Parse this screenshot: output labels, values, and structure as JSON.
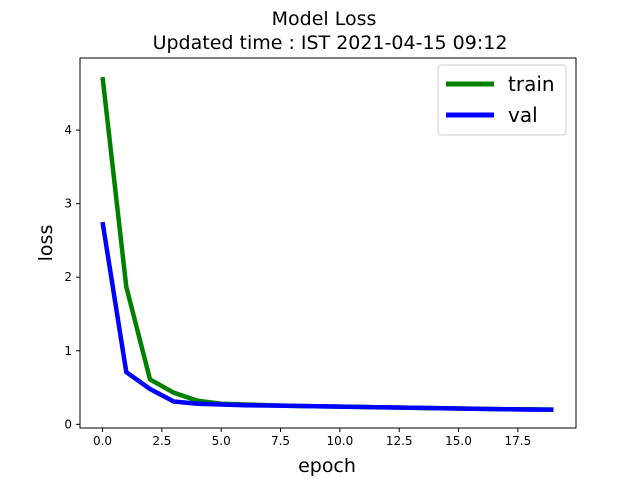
{
  "chart_data": {
    "type": "line",
    "title": "Model Loss",
    "subtitle": "Updated time : IST 2021-04-15 09:12",
    "xlabel": "epoch",
    "ylabel": "loss",
    "xlim": [
      -0.95,
      19.95
    ],
    "ylim": [
      -0.05,
      4.98
    ],
    "xticks": [
      0.0,
      2.5,
      5.0,
      7.5,
      10.0,
      12.5,
      15.0,
      17.5
    ],
    "xtick_labels": [
      "0.0",
      "2.5",
      "5.0",
      "7.5",
      "10.0",
      "12.5",
      "15.0",
      "17.5"
    ],
    "yticks": [
      0,
      1,
      2,
      3,
      4
    ],
    "ytick_labels": [
      "0",
      "1",
      "2",
      "3",
      "4"
    ],
    "grid": false,
    "legend_position": "top-right",
    "x": [
      0,
      1,
      2,
      3,
      4,
      5,
      6,
      7,
      8,
      9,
      10,
      11,
      12,
      13,
      14,
      15,
      16,
      17,
      18,
      19
    ],
    "series": [
      {
        "name": "train",
        "color": "#008000",
        "values": [
          4.72,
          1.87,
          0.61,
          0.43,
          0.32,
          0.28,
          0.27,
          0.26,
          0.25,
          0.245,
          0.24,
          0.235,
          0.23,
          0.225,
          0.22,
          0.215,
          0.21,
          0.205,
          0.205,
          0.2
        ]
      },
      {
        "name": "val",
        "color": "#0000ff",
        "values": [
          2.75,
          0.71,
          0.48,
          0.31,
          0.28,
          0.27,
          0.26,
          0.255,
          0.25,
          0.245,
          0.24,
          0.235,
          0.23,
          0.225,
          0.22,
          0.215,
          0.21,
          0.205,
          0.2,
          0.2
        ]
      }
    ]
  }
}
